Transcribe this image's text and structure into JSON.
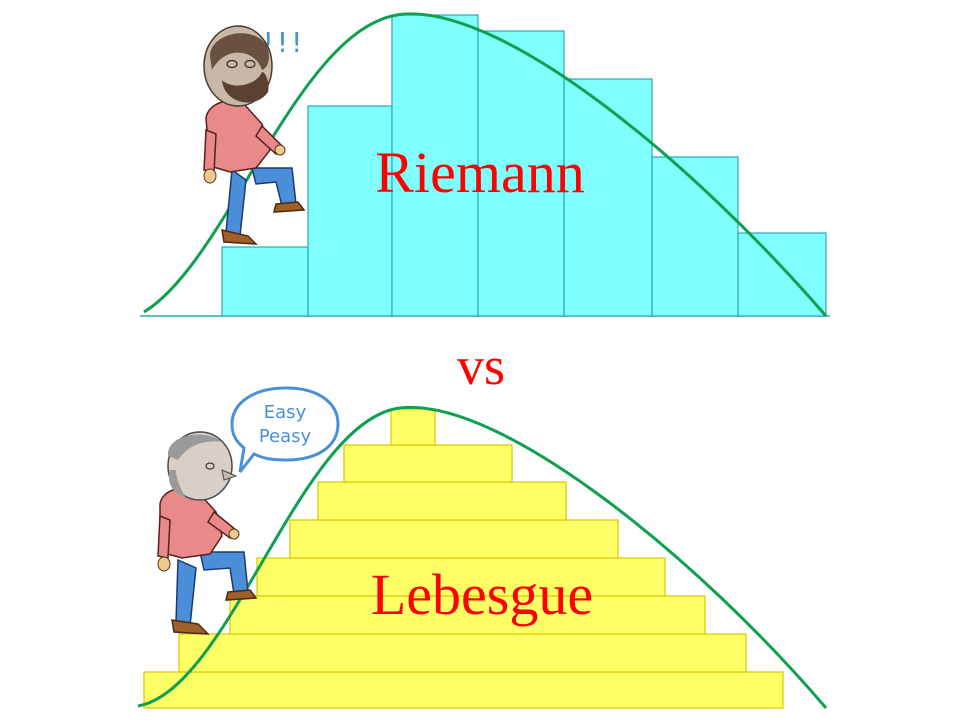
{
  "riemann": {
    "label": "Riemann",
    "exclaim": "!!!",
    "bar_fill": "#80ffff",
    "bar_stroke": "#2aa7c0"
  },
  "vs_label": "vs",
  "lebesgue": {
    "label": "Lebesgue",
    "bubble_line1": "Easy",
    "bubble_line2": "Peasy",
    "bar_fill": "#ffff66",
    "bar_stroke": "#d8c800"
  },
  "colors": {
    "label": "#ff0000",
    "curve": "#10a050",
    "exclaim": "#4a90d9",
    "bubble_border": "#4a90d9",
    "bubble_text": "#4a90d9"
  },
  "characters": {
    "top": "bearded-man-climbing",
    "bottom": "old-man-climbing"
  }
}
